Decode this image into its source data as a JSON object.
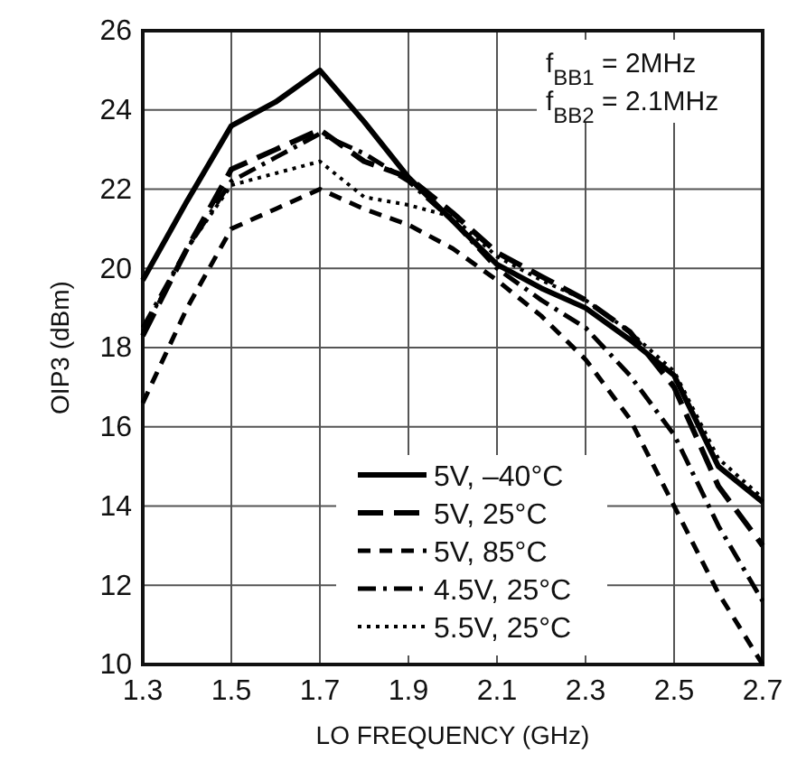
{
  "chart_data": {
    "type": "line",
    "xlabel": "LO FREQUENCY (GHz)",
    "ylabel": "OIP3 (dBm)",
    "x": [
      1.3,
      1.4,
      1.5,
      1.6,
      1.7,
      1.8,
      1.9,
      2.0,
      2.1,
      2.2,
      2.3,
      2.4,
      2.5,
      2.6,
      2.7
    ],
    "xlim": [
      1.3,
      2.7
    ],
    "xticks": [
      1.3,
      1.5,
      1.7,
      1.9,
      2.1,
      2.3,
      2.5,
      2.7
    ],
    "ylim": [
      10,
      26
    ],
    "yticks": [
      10,
      12,
      14,
      16,
      18,
      20,
      22,
      24,
      26
    ],
    "grid": true,
    "legend": "bottom right",
    "marker": "none",
    "annotations": [
      "f$_{BB1}$ = 2MHz",
      "f$_{BB2}$ = 2.1MHz"
    ],
    "series": [
      {
        "name": "5V, –40°C",
        "color": "#000000",
        "line_style": "solid",
        "values": [
          19.7,
          21.7,
          23.6,
          24.2,
          25.0,
          23.7,
          22.3,
          21.2,
          20.1,
          19.5,
          19.0,
          18.2,
          17.3,
          15.0,
          14.1
        ]
      },
      {
        "name": "5V, 25°C",
        "color": "#000000",
        "line_style": "dashed",
        "values": [
          18.3,
          20.5,
          22.5,
          23.0,
          23.5,
          22.7,
          22.3,
          21.4,
          20.4,
          19.8,
          19.2,
          18.4,
          17.0,
          14.5,
          13.0
        ]
      },
      {
        "name": "5V, 85°C",
        "color": "#000000",
        "line_style": "dashed",
        "values": [
          16.6,
          19.0,
          21.0,
          21.5,
          22.0,
          21.5,
          21.1,
          20.5,
          19.7,
          18.8,
          17.7,
          16.2,
          14.0,
          11.8,
          10.0
        ]
      },
      {
        "name": "4.5V, 25°C",
        "color": "#000000",
        "line_style": "dashdot",
        "values": [
          18.5,
          20.5,
          22.2,
          22.8,
          23.4,
          22.9,
          22.2,
          21.2,
          20.0,
          19.2,
          18.5,
          17.3,
          15.8,
          13.5,
          11.6
        ]
      },
      {
        "name": "5.5V, 25°C",
        "color": "#000000",
        "line_style": "dotted",
        "values": [
          18.4,
          20.5,
          22.1,
          22.4,
          22.7,
          21.8,
          21.6,
          21.3,
          20.3,
          19.7,
          19.2,
          18.4,
          17.4,
          15.2,
          14.2
        ]
      }
    ]
  }
}
